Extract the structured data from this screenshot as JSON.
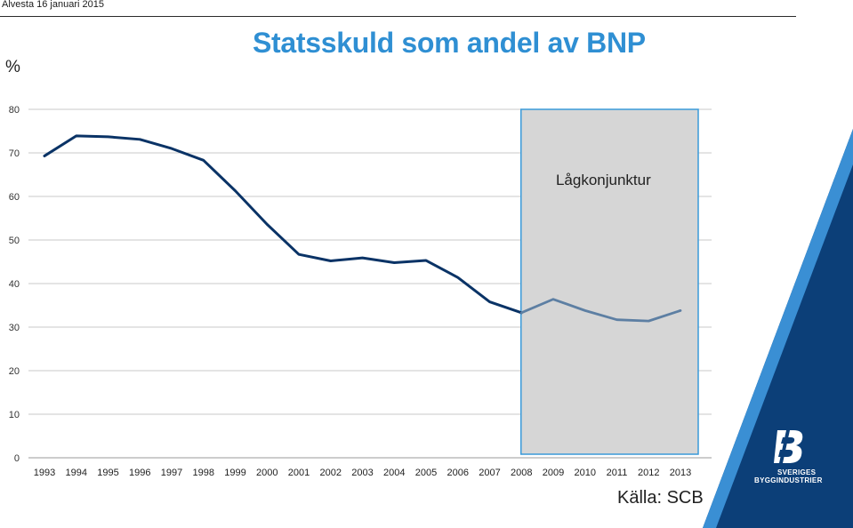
{
  "header": {
    "text": "Alvesta  16 januari 2015"
  },
  "title": "Statsskuld som andel av BNP",
  "unit": "%",
  "source": "Källa: SCB",
  "logo": {
    "line1": "SVERIGES",
    "line2": "BYGGINDUSTRIER"
  },
  "colors": {
    "title": "#2f8fd3",
    "line": "#0a3366",
    "line_highlight": "#5d7fa3",
    "band_fill": "#d6d6d6",
    "band_border": "#3a9ad9"
  },
  "chart_data": {
    "type": "line",
    "title": "Statsskuld som andel av BNP",
    "ylabel": "%",
    "xlabel": "",
    "categories": [
      "1993",
      "1994",
      "1995",
      "1996",
      "1997",
      "1998",
      "1999",
      "2000",
      "2001",
      "2002",
      "2003",
      "2004",
      "2005",
      "2006",
      "2007",
      "2008",
      "2009",
      "2010",
      "2011",
      "2012",
      "2013"
    ],
    "series": [
      {
        "values": [
          69.3,
          73.9,
          73.7,
          73.1,
          71.0,
          68.3,
          61.3,
          53.6,
          46.7,
          45.2,
          45.9,
          44.8,
          45.3,
          41.4,
          35.8,
          33.3,
          36.4,
          33.8,
          31.7,
          31.4,
          33.8
        ]
      }
    ],
    "ylim": [
      0,
      80
    ],
    "yticks": [
      0,
      10,
      20,
      30,
      40,
      50,
      60,
      70,
      80
    ],
    "grid": true,
    "highlight": {
      "from": "2008",
      "to": "2013",
      "label": "Lågkonjunktur"
    }
  }
}
